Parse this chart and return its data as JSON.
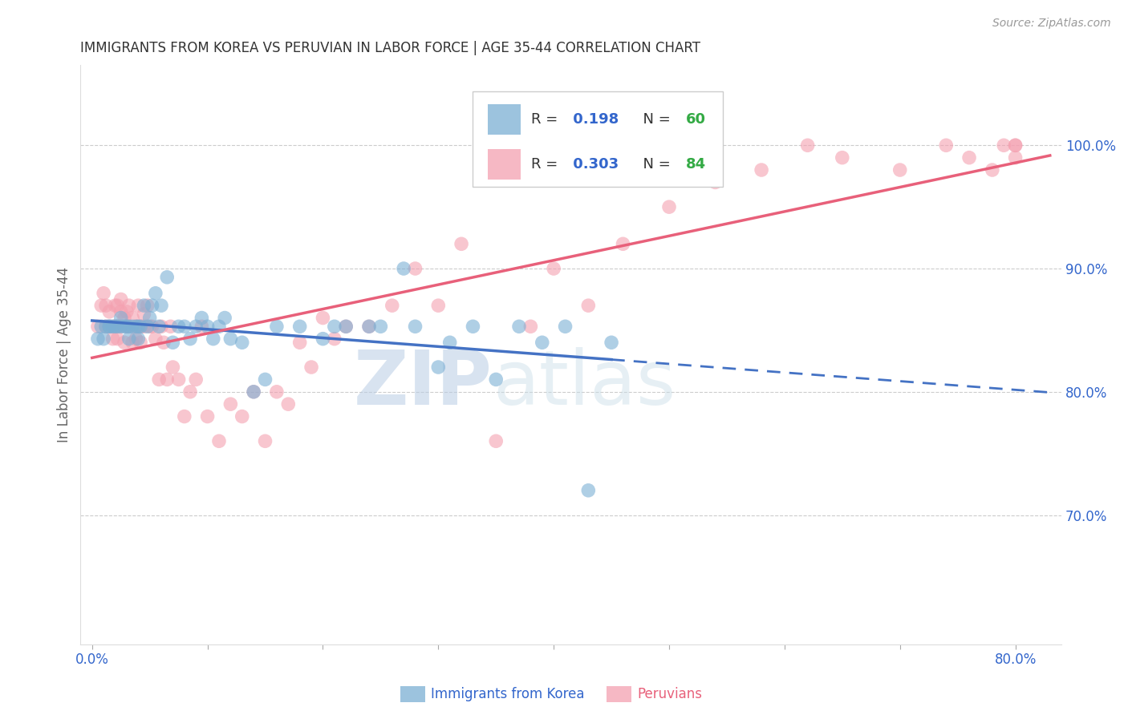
{
  "title": "IMMIGRANTS FROM KOREA VS PERUVIAN IN LABOR FORCE | AGE 35-44 CORRELATION CHART",
  "source": "Source: ZipAtlas.com",
  "ylabel_left": "In Labor Force | Age 35-44",
  "y_ticks_right": [
    0.7,
    0.8,
    0.9,
    1.0
  ],
  "y_tick_labels_right": [
    "70.0%",
    "80.0%",
    "90.0%",
    "100.0%"
  ],
  "xlim": [
    -0.01,
    0.84
  ],
  "ylim": [
    0.595,
    1.065
  ],
  "korea_color": "#7bafd4",
  "peru_color": "#f4a0b0",
  "korea_R": 0.198,
  "korea_N": 60,
  "peru_R": 0.303,
  "peru_N": 84,
  "korea_trend_color": "#4472c4",
  "peru_trend_color": "#e8607a",
  "watermark_zip": "ZIP",
  "watermark_atlas": "atlas",
  "watermark_color": "#c8daf0",
  "korea_x": [
    0.005,
    0.008,
    0.01,
    0.012,
    0.015,
    0.015,
    0.018,
    0.02,
    0.022,
    0.025,
    0.025,
    0.028,
    0.03,
    0.032,
    0.032,
    0.035,
    0.038,
    0.04,
    0.04,
    0.042,
    0.045,
    0.048,
    0.05,
    0.052,
    0.055,
    0.058,
    0.06,
    0.065,
    0.07,
    0.075,
    0.08,
    0.085,
    0.09,
    0.095,
    0.1,
    0.105,
    0.11,
    0.115,
    0.12,
    0.13,
    0.14,
    0.15,
    0.16,
    0.18,
    0.2,
    0.21,
    0.22,
    0.24,
    0.25,
    0.27,
    0.28,
    0.3,
    0.31,
    0.33,
    0.35,
    0.37,
    0.39,
    0.41,
    0.43,
    0.45
  ],
  "korea_y": [
    0.843,
    0.853,
    0.843,
    0.853,
    0.853,
    0.853,
    0.853,
    0.853,
    0.853,
    0.853,
    0.86,
    0.853,
    0.853,
    0.853,
    0.843,
    0.853,
    0.853,
    0.853,
    0.843,
    0.853,
    0.87,
    0.853,
    0.86,
    0.87,
    0.88,
    0.853,
    0.87,
    0.893,
    0.84,
    0.853,
    0.853,
    0.843,
    0.853,
    0.86,
    0.853,
    0.843,
    0.853,
    0.86,
    0.843,
    0.84,
    0.8,
    0.81,
    0.853,
    0.853,
    0.843,
    0.853,
    0.853,
    0.853,
    0.853,
    0.9,
    0.853,
    0.82,
    0.84,
    0.853,
    0.81,
    0.853,
    0.84,
    0.853,
    0.72,
    0.84
  ],
  "peru_x": [
    0.005,
    0.008,
    0.01,
    0.012,
    0.012,
    0.015,
    0.015,
    0.018,
    0.018,
    0.02,
    0.02,
    0.022,
    0.022,
    0.022,
    0.025,
    0.025,
    0.025,
    0.028,
    0.028,
    0.03,
    0.03,
    0.032,
    0.032,
    0.035,
    0.035,
    0.038,
    0.038,
    0.04,
    0.04,
    0.042,
    0.042,
    0.045,
    0.045,
    0.048,
    0.05,
    0.052,
    0.055,
    0.058,
    0.06,
    0.062,
    0.065,
    0.068,
    0.07,
    0.075,
    0.08,
    0.085,
    0.09,
    0.095,
    0.1,
    0.11,
    0.12,
    0.13,
    0.14,
    0.15,
    0.16,
    0.17,
    0.18,
    0.19,
    0.2,
    0.21,
    0.22,
    0.24,
    0.26,
    0.28,
    0.3,
    0.32,
    0.35,
    0.38,
    0.4,
    0.43,
    0.46,
    0.5,
    0.54,
    0.58,
    0.62,
    0.65,
    0.7,
    0.74,
    0.76,
    0.78,
    0.79,
    0.8,
    0.8,
    0.8
  ],
  "peru_y": [
    0.853,
    0.87,
    0.88,
    0.853,
    0.87,
    0.853,
    0.865,
    0.853,
    0.843,
    0.87,
    0.853,
    0.853,
    0.87,
    0.843,
    0.853,
    0.865,
    0.875,
    0.86,
    0.84,
    0.853,
    0.865,
    0.87,
    0.853,
    0.84,
    0.86,
    0.853,
    0.843,
    0.853,
    0.87,
    0.853,
    0.84,
    0.853,
    0.863,
    0.87,
    0.853,
    0.853,
    0.843,
    0.81,
    0.853,
    0.84,
    0.81,
    0.853,
    0.82,
    0.81,
    0.78,
    0.8,
    0.81,
    0.853,
    0.78,
    0.76,
    0.79,
    0.78,
    0.8,
    0.76,
    0.8,
    0.79,
    0.84,
    0.82,
    0.86,
    0.843,
    0.853,
    0.853,
    0.87,
    0.9,
    0.87,
    0.92,
    0.76,
    0.853,
    0.9,
    0.87,
    0.92,
    0.95,
    0.97,
    0.98,
    1.0,
    0.99,
    0.98,
    1.0,
    0.99,
    0.98,
    1.0,
    0.99,
    1.0,
    1.0
  ]
}
